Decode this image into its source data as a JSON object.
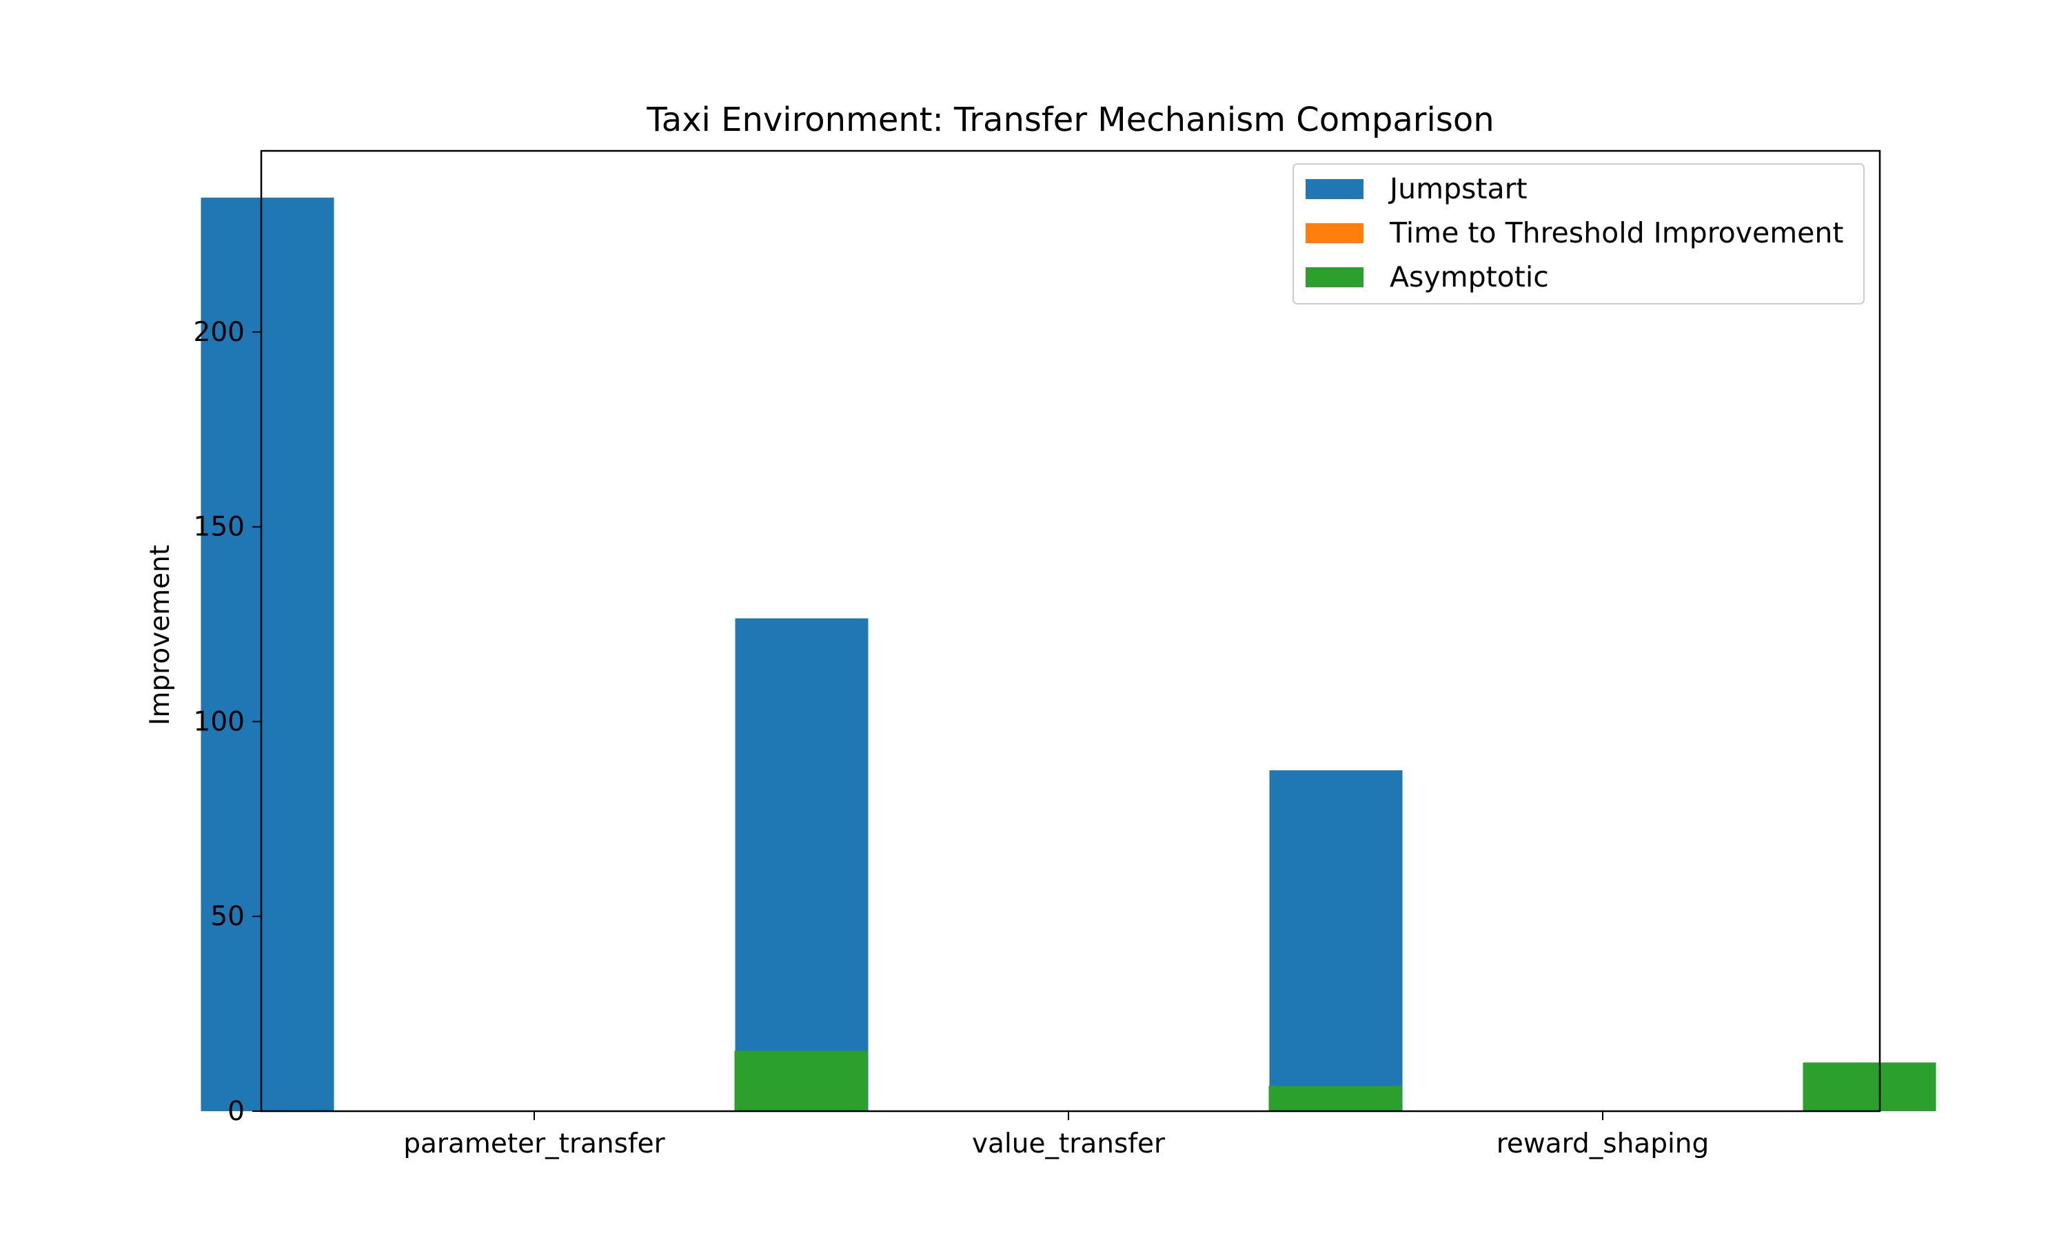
{
  "chart_data": {
    "type": "bar",
    "title": "Taxi Environment: Transfer Mechanism Comparison",
    "xlabel": "",
    "ylabel": "Improvement",
    "categories": [
      "parameter_transfer",
      "value_transfer",
      "reward_shaping"
    ],
    "series": [
      {
        "name": "Jumpstart",
        "color": "#1f77b4",
        "values": [
          234.5,
          126.5,
          87.5
        ]
      },
      {
        "name": "Time to Threshold Improvement",
        "color": "#ff7f0e",
        "values": [
          0,
          0,
          0
        ]
      },
      {
        "name": "Asymptotic",
        "color": "#2ca02c",
        "values": [
          15.5,
          6.5,
          12.5
        ]
      }
    ],
    "ylim": [
      0,
      246.5
    ],
    "yticks": [
      0,
      50,
      100,
      150,
      200
    ],
    "grid": false,
    "legend_position": "top-right"
  }
}
